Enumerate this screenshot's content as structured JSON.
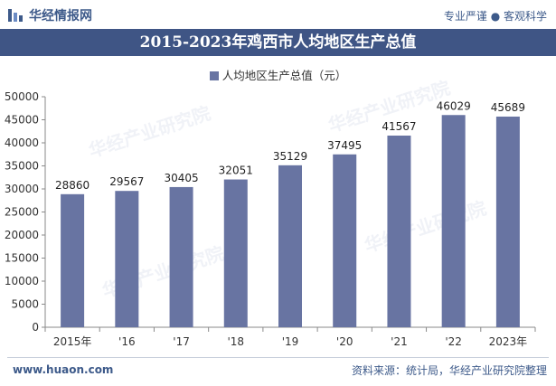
{
  "header": {
    "brand": "华经情报网",
    "tagline": "专业严谨 ● 客观科学"
  },
  "watermark": "华经产业研究院",
  "footer": {
    "site": "www.huaon.com",
    "source": "资料来源：统计局，华经产业研究院整理"
  },
  "chart_data": {
    "type": "bar",
    "title": "2015-2023年鸡西市人均地区生产总值",
    "categories": [
      "2015年",
      "'16",
      "'17",
      "'18",
      "'19",
      "'20",
      "'21",
      "'22",
      "2023年"
    ],
    "series": [
      {
        "name": "人均地区生产总值（元）",
        "values": [
          28860,
          29567,
          30405,
          32051,
          35129,
          37495,
          41567,
          46029,
          45689
        ]
      }
    ],
    "ylim": [
      0,
      50000
    ],
    "yticks": [
      0,
      5000,
      10000,
      15000,
      20000,
      25000,
      30000,
      35000,
      40000,
      45000,
      50000
    ],
    "grid": false,
    "legend": "top-center",
    "colors": {
      "bar": "#6874a2",
      "title_bg": "#3f5585",
      "accent": "#3d5a8a"
    }
  }
}
